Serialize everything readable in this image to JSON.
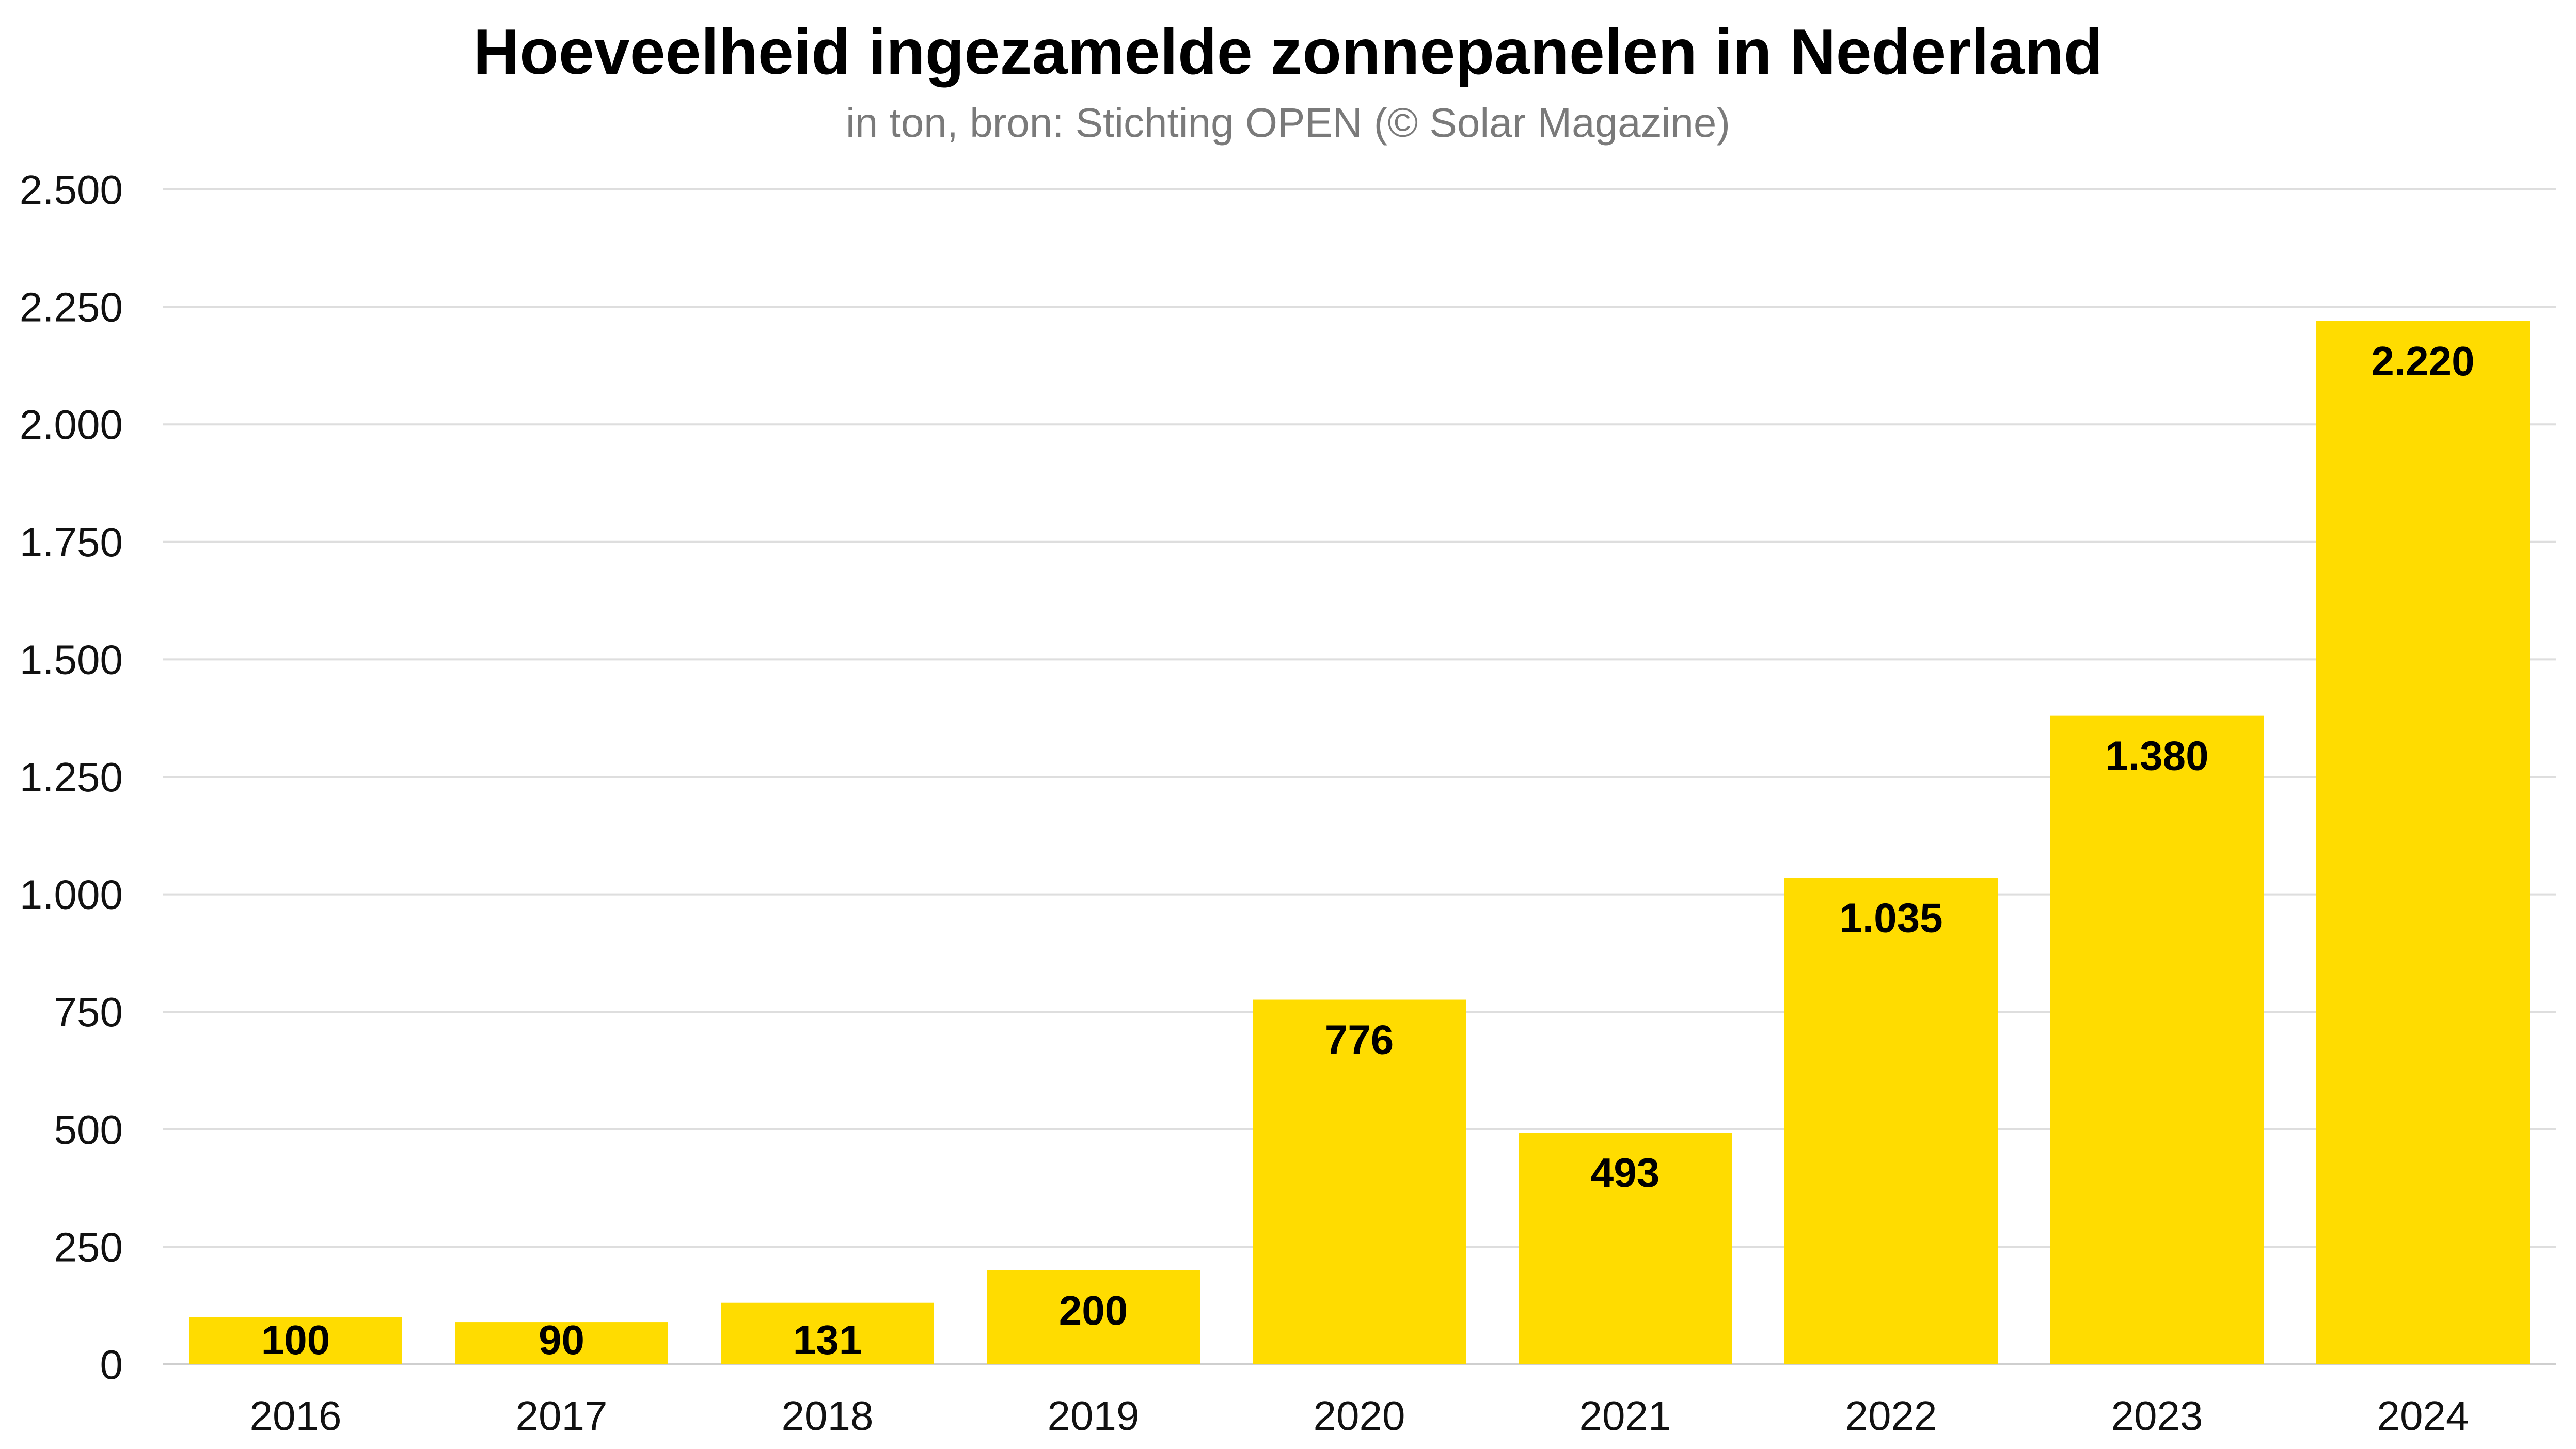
{
  "chart_data": {
    "type": "bar",
    "title": "Hoeveelheid ingezamelde zonnepanelen in Nederland",
    "subtitle": "in ton, bron: Stichting OPEN (© Solar Magazine)",
    "categories": [
      "2016",
      "2017",
      "2018",
      "2019",
      "2020",
      "2021",
      "2022",
      "2023",
      "2024"
    ],
    "values": [
      100,
      90,
      131,
      200,
      776,
      493,
      1035,
      1380,
      2220
    ],
    "value_labels": [
      "100",
      "90",
      "131",
      "200",
      "776",
      "493",
      "1.035",
      "1.380",
      "2.220"
    ],
    "ylim": [
      0,
      2500
    ],
    "yticks": [
      0,
      250,
      500,
      750,
      1000,
      1250,
      1500,
      1750,
      2000,
      2250,
      2500
    ],
    "ytick_labels": [
      "0",
      "250",
      "500",
      "750",
      "1.000",
      "1.250",
      "1.500",
      "1.750",
      "2.000",
      "2.250",
      "2.500"
    ],
    "xlabel": "",
    "ylabel": "",
    "grid": true,
    "legend": "none",
    "colors": {
      "bar": "#FFDC00",
      "grid": "#dedede",
      "axis": "#cfcfcf"
    }
  }
}
